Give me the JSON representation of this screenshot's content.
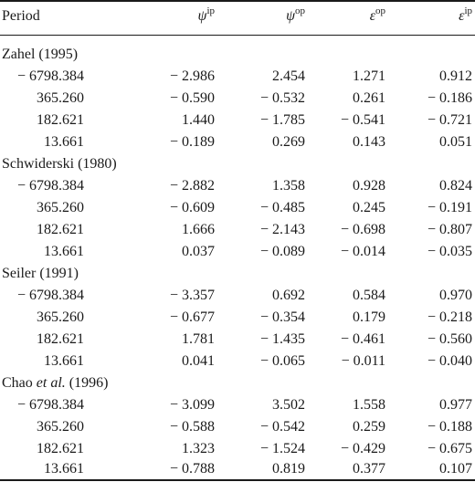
{
  "header": {
    "col0": "Period",
    "col1_symbol": "ψ",
    "col1_sup": "ip",
    "col2_symbol": "ψ",
    "col2_sup": "op",
    "col3_symbol": "ε",
    "col3_sup": "op",
    "col4_symbol": "ε",
    "col4_sup": "ip"
  },
  "groups": [
    {
      "title": "Zahel (1995)",
      "title_pre": "",
      "title_it": "",
      "title_post": "",
      "rows": [
        [
          "− 6798.384",
          "− 2.986",
          "2.454",
          "1.271",
          "0.912"
        ],
        [
          "365.260",
          "− 0.590",
          "− 0.532",
          "0.261",
          "− 0.186"
        ],
        [
          "182.621",
          "1.440",
          "− 1.785",
          "− 0.541",
          "− 0.721"
        ],
        [
          "13.661",
          "− 0.189",
          "0.269",
          "0.143",
          "0.051"
        ]
      ]
    },
    {
      "title": "Schwiderski (1980)",
      "title_pre": "",
      "title_it": "",
      "title_post": "",
      "rows": [
        [
          "− 6798.384",
          "− 2.882",
          "1.358",
          "0.928",
          "0.824"
        ],
        [
          "365.260",
          "− 0.609",
          "− 0.485",
          "0.245",
          "− 0.191"
        ],
        [
          "182.621",
          "1.666",
          "− 2.143",
          "− 0.698",
          "− 0.807"
        ],
        [
          "13.661",
          "0.037",
          "− 0.089",
          "− 0.014",
          "− 0.035"
        ]
      ]
    },
    {
      "title": "Seiler (1991)",
      "title_pre": "",
      "title_it": "",
      "title_post": "",
      "rows": [
        [
          "− 6798.384",
          "− 3.357",
          "0.692",
          "0.584",
          "0.970"
        ],
        [
          "365.260",
          "− 0.677",
          "− 0.354",
          "0.179",
          "− 0.218"
        ],
        [
          "182.621",
          "1.781",
          "− 1.435",
          "− 0.461",
          "− 0.560"
        ],
        [
          "13.661",
          "0.041",
          "− 0.065",
          "− 0.011",
          "− 0.040"
        ]
      ]
    },
    {
      "title": "",
      "title_pre": "Chao ",
      "title_it": "et al.",
      "title_post": " (1996)",
      "rows": [
        [
          "− 6798.384",
          "− 3.099",
          "3.502",
          "1.558",
          "0.977"
        ],
        [
          "365.260",
          "− 0.588",
          "− 0.542",
          "0.259",
          "− 0.188"
        ],
        [
          "182.621",
          "1.323",
          "− 1.524",
          "− 0.429",
          "− 0.675"
        ],
        [
          "13.661",
          "− 0.788",
          "0.819",
          "0.377",
          "0.107"
        ]
      ]
    }
  ]
}
